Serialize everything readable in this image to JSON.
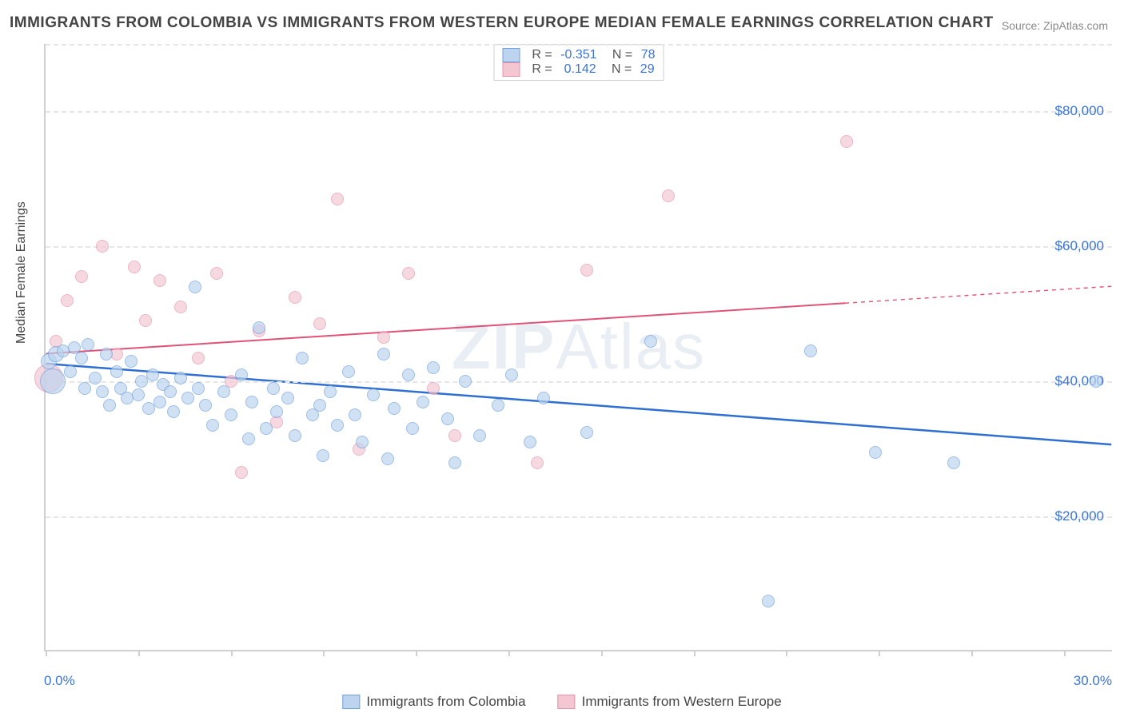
{
  "title": "IMMIGRANTS FROM COLOMBIA VS IMMIGRANTS FROM WESTERN EUROPE MEDIAN FEMALE EARNINGS CORRELATION CHART",
  "source": "Source: ZipAtlas.com",
  "watermark_a": "ZIP",
  "watermark_b": "Atlas",
  "y_axis_label": "Median Female Earnings",
  "chart": {
    "type": "scatter",
    "xlim": [
      0,
      30
    ],
    "ylim": [
      0,
      90000
    ],
    "x_ticks": [
      0,
      2.6,
      5.2,
      7.8,
      10.4,
      13,
      15.6,
      18.2,
      20.8,
      23.4,
      26,
      28.6
    ],
    "x_tick_labels": {
      "0": "0.0%",
      "30": "30.0%"
    },
    "y_gridlines": [
      20000,
      40000,
      60000,
      80000
    ],
    "y_tick_labels": {
      "20000": "$20,000",
      "40000": "$40,000",
      "60000": "$60,000",
      "80000": "$80,000"
    },
    "background_color": "#ffffff",
    "grid_color": "#e6e6e6",
    "axis_color": "#d0d0d0",
    "tick_label_color": "#3b74d4",
    "point_radius": 8,
    "point_stroke_width": 1.5
  },
  "series": [
    {
      "name": "Immigrants from Colombia",
      "fill": "#bcd4ef",
      "stroke": "#6fa0de",
      "fill_opacity": 0.68,
      "R": "-0.351",
      "N": "78",
      "trend": {
        "x1": 0,
        "y1": 42500,
        "x2": 30,
        "y2": 30500,
        "stroke": "#2f6fd1",
        "width": 2.5,
        "solid_until_x": 30
      },
      "points": [
        {
          "x": 0.1,
          "y": 43000,
          "r": 10
        },
        {
          "x": 0.2,
          "y": 40000,
          "r": 16
        },
        {
          "x": 0.3,
          "y": 44000,
          "r": 10
        },
        {
          "x": 0.5,
          "y": 44500,
          "r": 8
        },
        {
          "x": 0.7,
          "y": 41500,
          "r": 8
        },
        {
          "x": 0.8,
          "y": 45000,
          "r": 8
        },
        {
          "x": 1.0,
          "y": 43500,
          "r": 8
        },
        {
          "x": 1.1,
          "y": 39000,
          "r": 8
        },
        {
          "x": 1.2,
          "y": 45500,
          "r": 8
        },
        {
          "x": 1.4,
          "y": 40500,
          "r": 8
        },
        {
          "x": 1.6,
          "y": 38500,
          "r": 8
        },
        {
          "x": 1.7,
          "y": 44000,
          "r": 8
        },
        {
          "x": 1.8,
          "y": 36500,
          "r": 8
        },
        {
          "x": 2.0,
          "y": 41500,
          "r": 8
        },
        {
          "x": 2.1,
          "y": 39000,
          "r": 8
        },
        {
          "x": 2.3,
          "y": 37500,
          "r": 8
        },
        {
          "x": 2.4,
          "y": 43000,
          "r": 8
        },
        {
          "x": 2.6,
          "y": 38000,
          "r": 8
        },
        {
          "x": 2.7,
          "y": 40000,
          "r": 8
        },
        {
          "x": 2.9,
          "y": 36000,
          "r": 8
        },
        {
          "x": 3.0,
          "y": 41000,
          "r": 8
        },
        {
          "x": 3.2,
          "y": 37000,
          "r": 8
        },
        {
          "x": 3.3,
          "y": 39500,
          "r": 8
        },
        {
          "x": 3.5,
          "y": 38500,
          "r": 8
        },
        {
          "x": 3.6,
          "y": 35500,
          "r": 8
        },
        {
          "x": 3.8,
          "y": 40500,
          "r": 8
        },
        {
          "x": 4.0,
          "y": 37500,
          "r": 8
        },
        {
          "x": 4.2,
          "y": 54000,
          "r": 8
        },
        {
          "x": 4.3,
          "y": 39000,
          "r": 8
        },
        {
          "x": 4.5,
          "y": 36500,
          "r": 8
        },
        {
          "x": 4.7,
          "y": 33500,
          "r": 8
        },
        {
          "x": 5.0,
          "y": 38500,
          "r": 8
        },
        {
          "x": 5.2,
          "y": 35000,
          "r": 8
        },
        {
          "x": 5.5,
          "y": 41000,
          "r": 8
        },
        {
          "x": 5.7,
          "y": 31500,
          "r": 8
        },
        {
          "x": 5.8,
          "y": 37000,
          "r": 8
        },
        {
          "x": 6.0,
          "y": 48000,
          "r": 8
        },
        {
          "x": 6.2,
          "y": 33000,
          "r": 8
        },
        {
          "x": 6.4,
          "y": 39000,
          "r": 8
        },
        {
          "x": 6.5,
          "y": 35500,
          "r": 8
        },
        {
          "x": 6.8,
          "y": 37500,
          "r": 8
        },
        {
          "x": 7.0,
          "y": 32000,
          "r": 8
        },
        {
          "x": 7.2,
          "y": 43500,
          "r": 8
        },
        {
          "x": 7.5,
          "y": 35000,
          "r": 8
        },
        {
          "x": 7.7,
          "y": 36500,
          "r": 8
        },
        {
          "x": 7.8,
          "y": 29000,
          "r": 8
        },
        {
          "x": 8.0,
          "y": 38500,
          "r": 8
        },
        {
          "x": 8.2,
          "y": 33500,
          "r": 8
        },
        {
          "x": 8.5,
          "y": 41500,
          "r": 8
        },
        {
          "x": 8.7,
          "y": 35000,
          "r": 8
        },
        {
          "x": 8.9,
          "y": 31000,
          "r": 8
        },
        {
          "x": 9.2,
          "y": 38000,
          "r": 8
        },
        {
          "x": 9.5,
          "y": 44000,
          "r": 8
        },
        {
          "x": 9.6,
          "y": 28500,
          "r": 8
        },
        {
          "x": 9.8,
          "y": 36000,
          "r": 8
        },
        {
          "x": 10.2,
          "y": 41000,
          "r": 8
        },
        {
          "x": 10.3,
          "y": 33000,
          "r": 8
        },
        {
          "x": 10.6,
          "y": 37000,
          "r": 8
        },
        {
          "x": 10.9,
          "y": 42000,
          "r": 8
        },
        {
          "x": 11.3,
          "y": 34500,
          "r": 8
        },
        {
          "x": 11.5,
          "y": 28000,
          "r": 8
        },
        {
          "x": 11.8,
          "y": 40000,
          "r": 8
        },
        {
          "x": 12.2,
          "y": 32000,
          "r": 8
        },
        {
          "x": 12.7,
          "y": 36500,
          "r": 8
        },
        {
          "x": 13.1,
          "y": 41000,
          "r": 8
        },
        {
          "x": 13.6,
          "y": 31000,
          "r": 8
        },
        {
          "x": 14.0,
          "y": 37500,
          "r": 8
        },
        {
          "x": 15.2,
          "y": 32500,
          "r": 8
        },
        {
          "x": 17.0,
          "y": 46000,
          "r": 8
        },
        {
          "x": 20.3,
          "y": 7500,
          "r": 8
        },
        {
          "x": 21.5,
          "y": 44500,
          "r": 8
        },
        {
          "x": 23.3,
          "y": 29500,
          "r": 8
        },
        {
          "x": 25.5,
          "y": 28000,
          "r": 8
        },
        {
          "x": 29.5,
          "y": 40000,
          "r": 8
        }
      ]
    },
    {
      "name": "Immigrants from Western Europe",
      "fill": "#f3c7d2",
      "stroke": "#e793ad",
      "fill_opacity": 0.68,
      "R": "0.142",
      "N": "29",
      "trend": {
        "x1": 0,
        "y1": 44000,
        "x2": 30,
        "y2": 54000,
        "stroke": "#e15277",
        "width": 2,
        "solid_until_x": 22.5
      },
      "points": [
        {
          "x": 0.1,
          "y": 40500,
          "r": 18
        },
        {
          "x": 0.3,
          "y": 46000,
          "r": 8
        },
        {
          "x": 0.6,
          "y": 52000,
          "r": 8
        },
        {
          "x": 1.0,
          "y": 55500,
          "r": 8
        },
        {
          "x": 1.6,
          "y": 60000,
          "r": 8
        },
        {
          "x": 2.0,
          "y": 44000,
          "r": 8
        },
        {
          "x": 2.5,
          "y": 57000,
          "r": 8
        },
        {
          "x": 2.8,
          "y": 49000,
          "r": 8
        },
        {
          "x": 3.2,
          "y": 55000,
          "r": 8
        },
        {
          "x": 3.8,
          "y": 51000,
          "r": 8
        },
        {
          "x": 4.3,
          "y": 43500,
          "r": 8
        },
        {
          "x": 4.8,
          "y": 56000,
          "r": 8
        },
        {
          "x": 5.2,
          "y": 40000,
          "r": 8
        },
        {
          "x": 5.5,
          "y": 26500,
          "r": 8
        },
        {
          "x": 6.0,
          "y": 47500,
          "r": 8
        },
        {
          "x": 6.5,
          "y": 34000,
          "r": 8
        },
        {
          "x": 7.0,
          "y": 52500,
          "r": 8
        },
        {
          "x": 7.7,
          "y": 48500,
          "r": 8
        },
        {
          "x": 8.2,
          "y": 67000,
          "r": 8
        },
        {
          "x": 8.8,
          "y": 30000,
          "r": 8
        },
        {
          "x": 9.5,
          "y": 46500,
          "r": 8
        },
        {
          "x": 10.2,
          "y": 56000,
          "r": 8
        },
        {
          "x": 10.9,
          "y": 39000,
          "r": 8
        },
        {
          "x": 11.5,
          "y": 32000,
          "r": 8
        },
        {
          "x": 13.8,
          "y": 28000,
          "r": 8
        },
        {
          "x": 15.2,
          "y": 56500,
          "r": 8
        },
        {
          "x": 17.5,
          "y": 67500,
          "r": 8
        },
        {
          "x": 22.5,
          "y": 75500,
          "r": 8
        }
      ]
    }
  ],
  "legend_top": {
    "R_label": "R =",
    "N_label": "N ="
  },
  "legend_bottom_labels": [
    "Immigrants from Colombia",
    "Immigrants from Western Europe"
  ]
}
